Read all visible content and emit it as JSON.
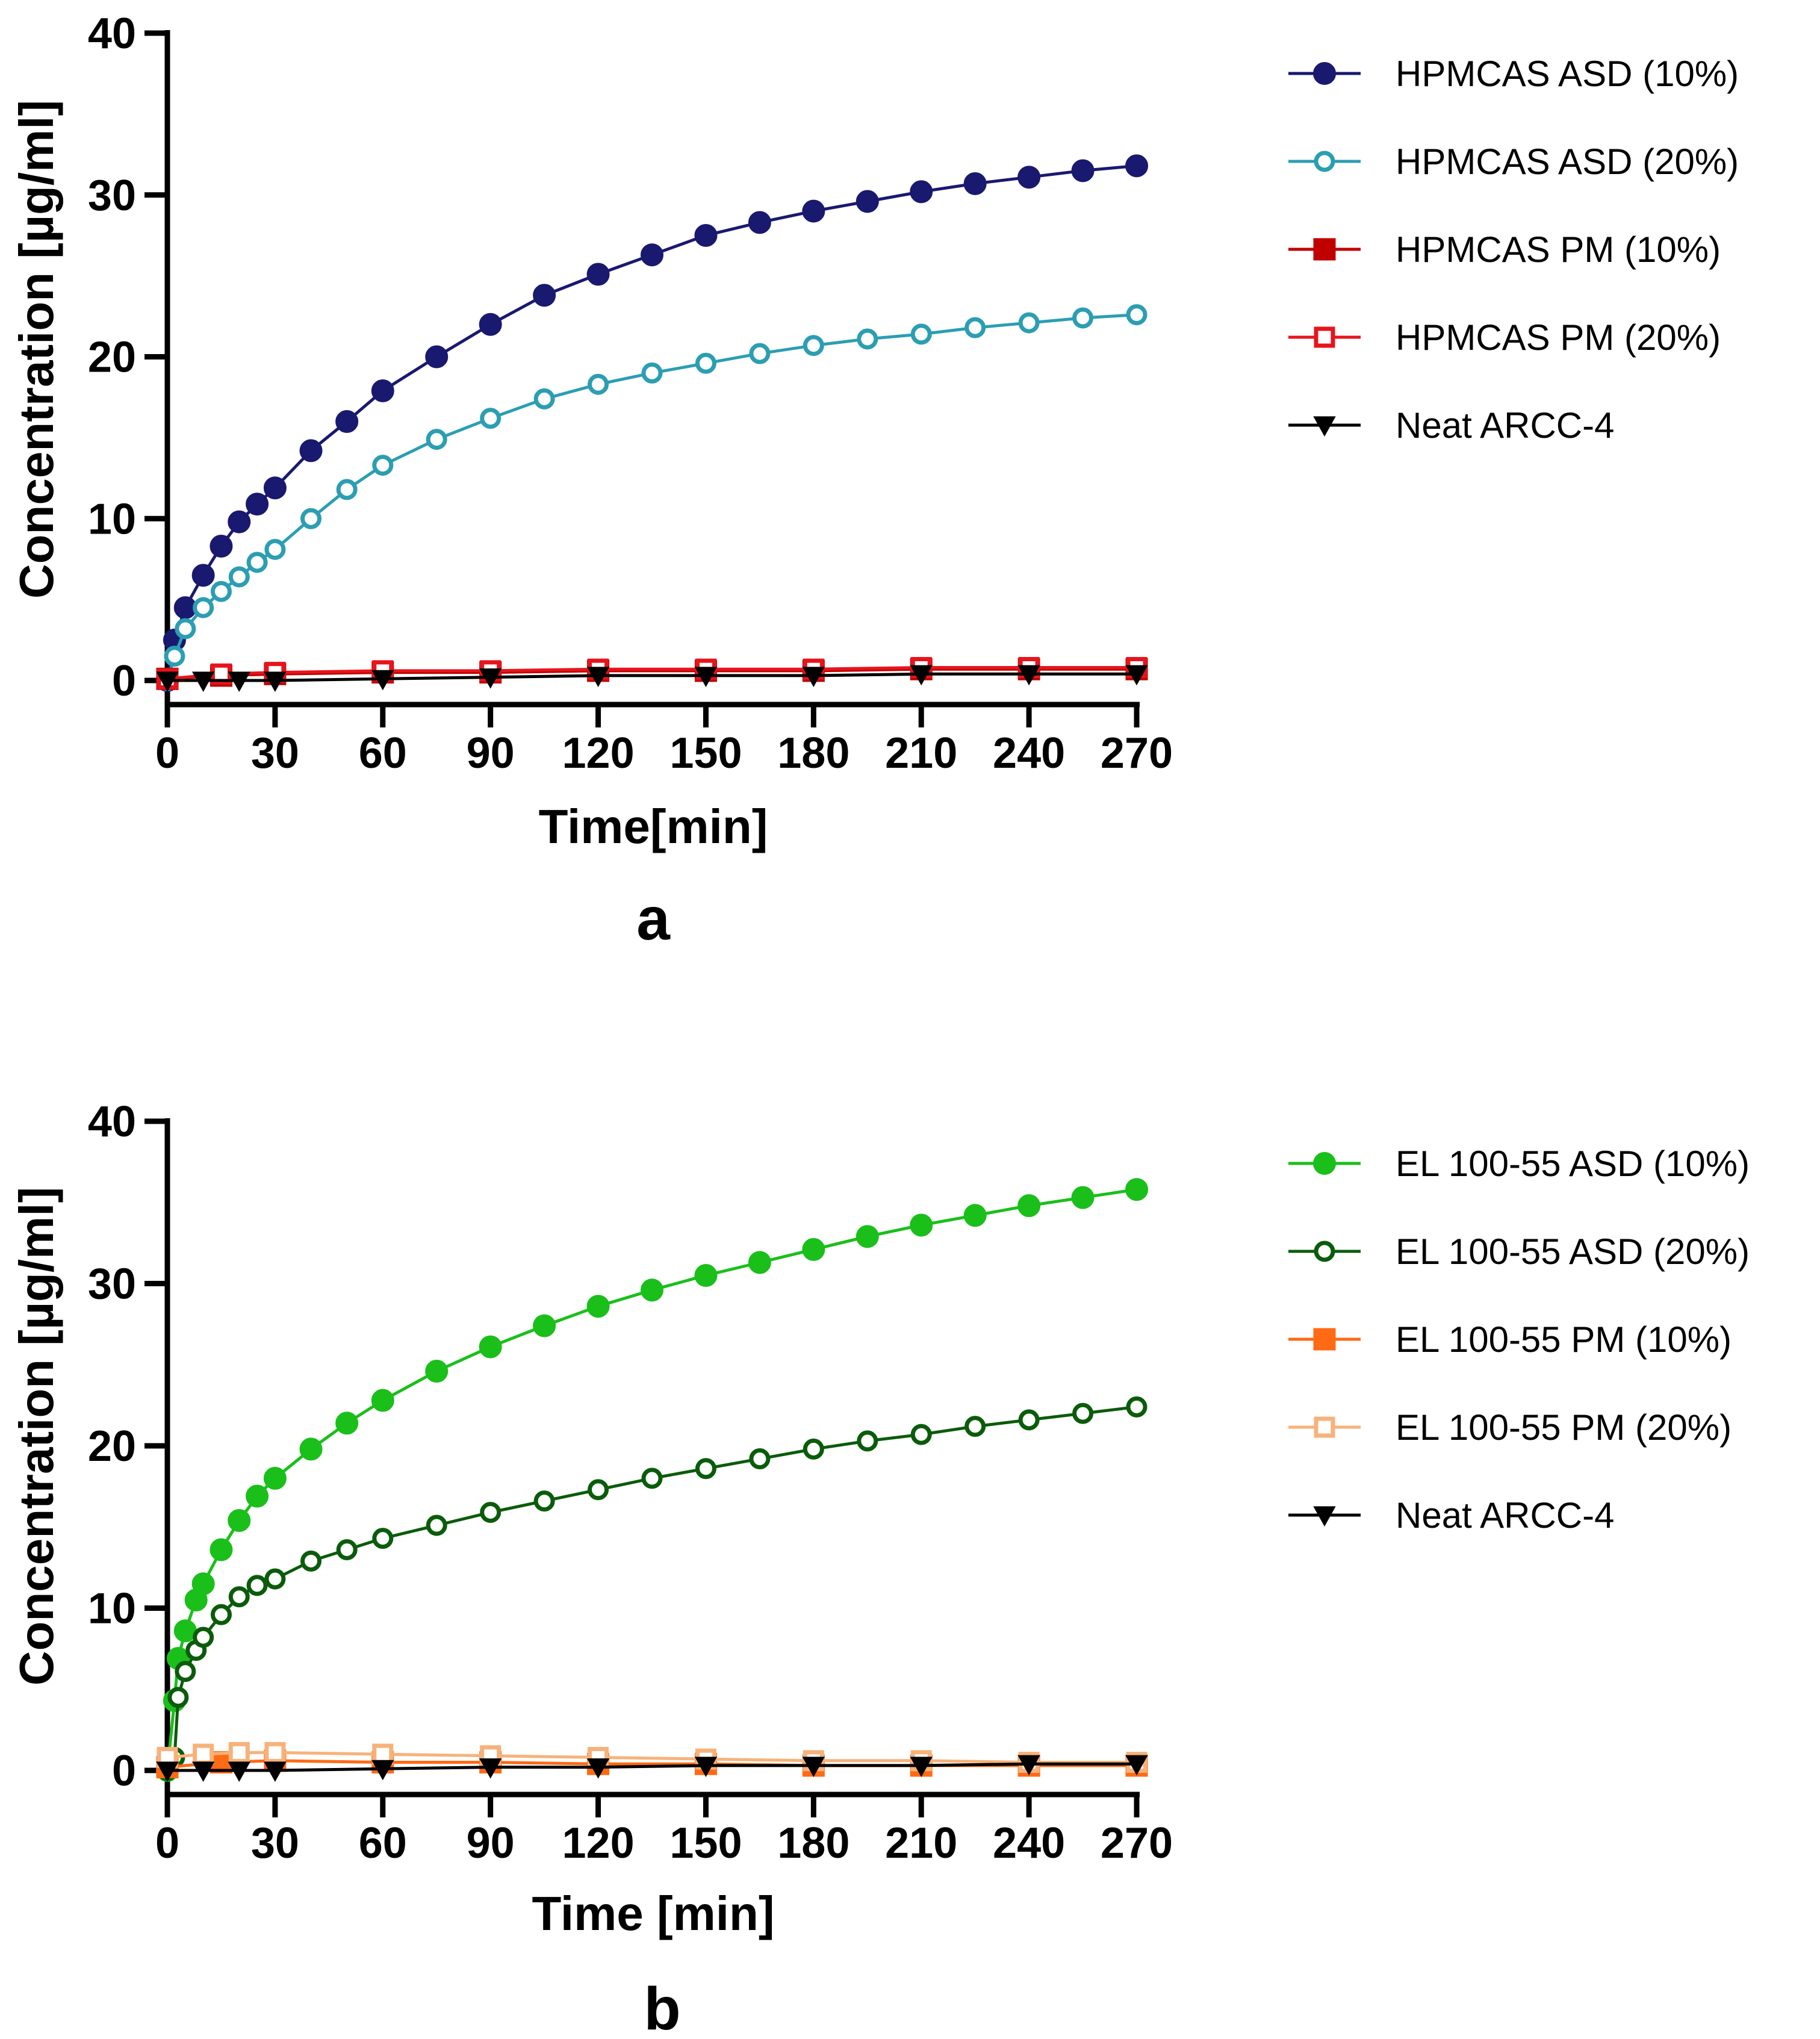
{
  "chart_data": [
    {
      "type": "line",
      "panel_label": "a",
      "xlabel": "Time[min]",
      "ylabel": "Concentration [µg/ml]",
      "xlim": [
        0,
        270
      ],
      "ylim": [
        0,
        40
      ],
      "xticks": [
        0,
        30,
        60,
        90,
        120,
        150,
        180,
        210,
        240,
        270
      ],
      "yticks": [
        0,
        10,
        20,
        30,
        40
      ],
      "legend_position": "right",
      "series": [
        {
          "name": "HPMCAS ASD (10%)",
          "color": "#191970",
          "marker": "circle-filled",
          "x": [
            0,
            2,
            5,
            10,
            15,
            20,
            25,
            30,
            40,
            50,
            60,
            75,
            90,
            105,
            120,
            135,
            150,
            165,
            180,
            195,
            210,
            225,
            240,
            255,
            270
          ],
          "y": [
            0,
            2.5,
            4.5,
            6.5,
            8.3,
            9.8,
            10.9,
            11.9,
            14.2,
            16.0,
            17.9,
            20.0,
            22.0,
            23.8,
            25.1,
            26.3,
            27.5,
            28.3,
            29.0,
            29.6,
            30.2,
            30.7,
            31.1,
            31.5,
            31.8
          ]
        },
        {
          "name": "HPMCAS ASD (20%)",
          "color": "#2B9EB3",
          "marker": "circle-open",
          "x": [
            0,
            2,
            5,
            10,
            15,
            20,
            25,
            30,
            40,
            50,
            60,
            75,
            90,
            105,
            120,
            135,
            150,
            165,
            180,
            195,
            210,
            225,
            240,
            255,
            270
          ],
          "y": [
            0,
            1.5,
            3.2,
            4.5,
            5.5,
            6.4,
            7.3,
            8.1,
            10.0,
            11.8,
            13.3,
            14.9,
            16.2,
            17.4,
            18.3,
            19.0,
            19.6,
            20.2,
            20.7,
            21.1,
            21.4,
            21.8,
            22.1,
            22.4,
            22.6
          ]
        },
        {
          "name": "HPMCAS PM (10%)",
          "color": "#C00000",
          "marker": "square-filled",
          "x": [
            0,
            15,
            30,
            60,
            90,
            120,
            150,
            180,
            210,
            240,
            270
          ],
          "y": [
            0.1,
            0.3,
            0.4,
            0.5,
            0.5,
            0.6,
            0.6,
            0.6,
            0.7,
            0.7,
            0.7
          ]
        },
        {
          "name": "HPMCAS PM (20%)",
          "color": "#E8141C",
          "marker": "square-open",
          "x": [
            0,
            15,
            30,
            60,
            90,
            120,
            150,
            180,
            210,
            240,
            270
          ],
          "y": [
            0.1,
            0.4,
            0.5,
            0.6,
            0.6,
            0.7,
            0.7,
            0.7,
            0.8,
            0.8,
            0.8
          ]
        },
        {
          "name": "Neat ARCC-4",
          "color": "#000000",
          "marker": "triangle-down",
          "x": [
            0,
            10,
            20,
            30,
            60,
            90,
            120,
            150,
            180,
            210,
            240,
            270
          ],
          "y": [
            0,
            0,
            0,
            0,
            0.1,
            0.2,
            0.3,
            0.3,
            0.3,
            0.4,
            0.4,
            0.4
          ]
        }
      ]
    },
    {
      "type": "line",
      "panel_label": "b",
      "xlabel": "Time [min]",
      "ylabel": "Concentration [µg/ml]",
      "xlim": [
        0,
        270
      ],
      "ylim": [
        0,
        40
      ],
      "xticks": [
        0,
        30,
        60,
        90,
        120,
        150,
        180,
        210,
        240,
        270
      ],
      "yticks": [
        0,
        10,
        20,
        30,
        40
      ],
      "legend_position": "right",
      "series": [
        {
          "name": "EL 100-55 ASD (10%)",
          "color": "#1ABF1A",
          "marker": "circle-filled",
          "x": [
            0,
            2,
            3,
            5,
            8,
            10,
            15,
            20,
            25,
            30,
            40,
            50,
            60,
            75,
            90,
            105,
            120,
            135,
            150,
            165,
            180,
            195,
            210,
            225,
            240,
            255,
            270
          ],
          "y": [
            0,
            4.3,
            6.9,
            8.6,
            10.5,
            11.5,
            13.6,
            15.4,
            16.9,
            18.0,
            19.8,
            21.4,
            22.8,
            24.6,
            26.1,
            27.4,
            28.6,
            29.6,
            30.5,
            31.3,
            32.1,
            32.9,
            33.6,
            34.2,
            34.8,
            35.3,
            35.8
          ]
        },
        {
          "name": "EL 100-55 ASD (20%)",
          "color": "#0A5C0A",
          "marker": "circle-open",
          "x": [
            0,
            2,
            3,
            5,
            8,
            10,
            15,
            20,
            25,
            30,
            40,
            50,
            60,
            75,
            90,
            105,
            120,
            135,
            150,
            165,
            180,
            195,
            210,
            225,
            240,
            255,
            270
          ],
          "y": [
            0,
            0.8,
            4.5,
            6.1,
            7.4,
            8.2,
            9.6,
            10.7,
            11.4,
            11.8,
            12.9,
            13.6,
            14.3,
            15.1,
            15.9,
            16.6,
            17.3,
            18.0,
            18.6,
            19.2,
            19.8,
            20.3,
            20.7,
            21.2,
            21.6,
            22.0,
            22.4
          ]
        },
        {
          "name": "EL 100-55 PM (10%)",
          "color": "#FF6A14",
          "marker": "square-filled",
          "x": [
            0,
            15,
            30,
            60,
            90,
            120,
            150,
            180,
            210,
            240,
            270
          ],
          "y": [
            0.2,
            0.5,
            0.6,
            0.5,
            0.5,
            0.4,
            0.4,
            0.3,
            0.3,
            0.3,
            0.3
          ]
        },
        {
          "name": "EL 100-55 PM (20%)",
          "color": "#F7B27A",
          "marker": "square-open",
          "x": [
            0,
            10,
            20,
            30,
            60,
            90,
            120,
            150,
            180,
            210,
            240,
            270
          ],
          "y": [
            0.8,
            1.0,
            1.1,
            1.1,
            1.0,
            0.9,
            0.8,
            0.7,
            0.6,
            0.6,
            0.5,
            0.5
          ]
        },
        {
          "name": "Neat ARCC-4",
          "color": "#000000",
          "marker": "triangle-down",
          "x": [
            0,
            10,
            20,
            30,
            60,
            90,
            120,
            150,
            180,
            210,
            240,
            270
          ],
          "y": [
            0,
            0,
            0,
            0,
            0.1,
            0.2,
            0.2,
            0.3,
            0.3,
            0.3,
            0.4,
            0.4
          ]
        }
      ]
    }
  ]
}
